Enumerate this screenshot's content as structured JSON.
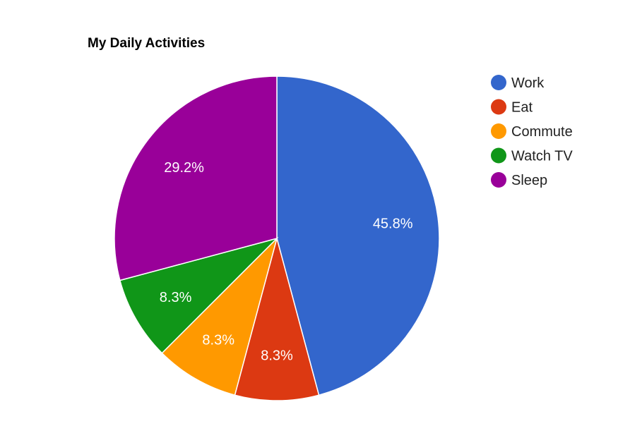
{
  "chart_data": {
    "type": "pie",
    "title": "My Daily Activities",
    "legend_position": "right",
    "categories": [
      "Work",
      "Eat",
      "Commute",
      "Watch TV",
      "Sleep"
    ],
    "values": [
      11,
      2,
      2,
      2,
      7
    ],
    "labels": [
      "45.8%",
      "8.3%",
      "8.3%",
      "8.3%",
      "29.2%"
    ],
    "colors": [
      "#3366cc",
      "#dc3912",
      "#ff9900",
      "#109618",
      "#990099"
    ]
  }
}
